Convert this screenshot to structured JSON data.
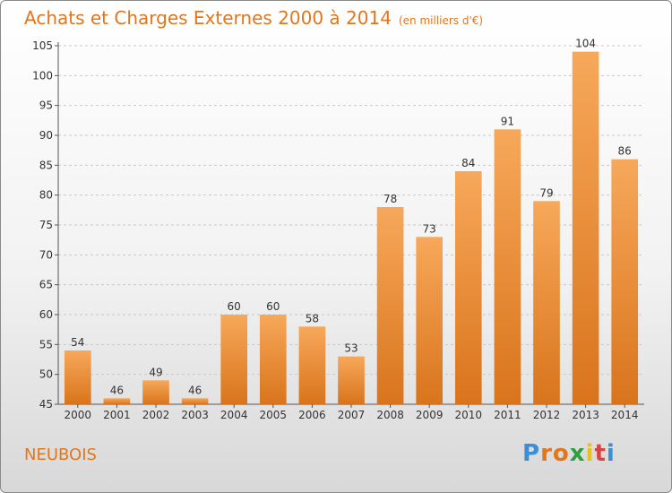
{
  "title": "Achats et Charges Externes 2000 à 2014",
  "subtitle": "(en milliers d'€)",
  "place": "NEUBOIS",
  "logo": [
    "P",
    "r",
    "o",
    "x",
    "i",
    "t",
    "i"
  ],
  "logo_colors": [
    "#3b8fd6",
    "#e2761c",
    "#e2761c",
    "#2e9f3e",
    "#e8c21a",
    "#d64545",
    "#3b8fd6"
  ],
  "colors": {
    "bar_light": "#f7a85a",
    "bar_dark": "#d9741c",
    "text": "#e2761c"
  },
  "chart_data": {
    "type": "bar",
    "categories": [
      "2000",
      "2001",
      "2002",
      "2003",
      "2004",
      "2005",
      "2006",
      "2007",
      "2008",
      "2009",
      "2010",
      "2011",
      "2012",
      "2013",
      "2014"
    ],
    "values": [
      54,
      46,
      49,
      46,
      60,
      60,
      58,
      53,
      78,
      73,
      84,
      91,
      79,
      104,
      86
    ],
    "title": "Achats et Charges Externes 2000 à 2014",
    "ylim": [
      45,
      105
    ],
    "yticks": [
      45,
      50,
      55,
      60,
      65,
      70,
      75,
      80,
      85,
      90,
      95,
      100,
      105
    ],
    "grid": true
  }
}
